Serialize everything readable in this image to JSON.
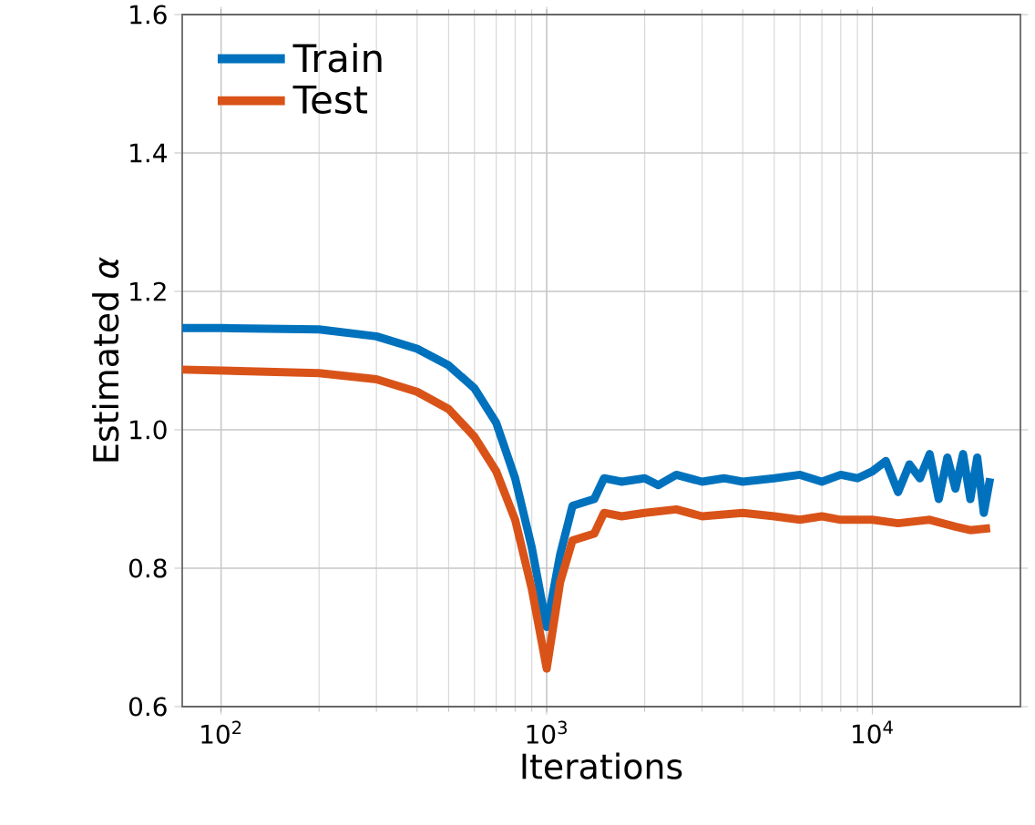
{
  "chart_data": {
    "type": "line",
    "xlabel": "Iterations",
    "ylabel": "Estimated *α*",
    "log": "x",
    "xlim": [
      76,
      28500
    ],
    "ylim": [
      0.6,
      1.6
    ],
    "xticks": [
      {
        "value": 100,
        "label": "10$^{2}$"
      },
      {
        "value": 1000,
        "label": "10$^{3}$"
      },
      {
        "value": 10000,
        "label": "10$^{4}$"
      }
    ],
    "yticks": [
      0.6,
      0.8,
      {
        "value": 1,
        "label": "1.0"
      },
      1.2,
      1.4,
      1.6
    ],
    "grid": true,
    "legend": "top left",
    "series": [
      {
        "name": "Train",
        "color": "#0072bd",
        "x": [
          76,
          100,
          200,
          300,
          400,
          500,
          600,
          700,
          800,
          900,
          1000,
          1100,
          1200,
          1400,
          1500,
          1700,
          2000,
          2200,
          2500,
          3000,
          3500,
          4000,
          5000,
          6000,
          7000,
          8000,
          9000,
          10000,
          11000,
          12000,
          13000,
          14000,
          15000,
          16000,
          17000,
          18000,
          19000,
          20000,
          21000,
          22000,
          23000
        ],
        "values": [
          1.147,
          1.147,
          1.145,
          1.135,
          1.117,
          1.093,
          1.06,
          1.01,
          0.93,
          0.83,
          0.715,
          0.82,
          0.89,
          0.9,
          0.93,
          0.925,
          0.93,
          0.92,
          0.935,
          0.925,
          0.93,
          0.925,
          0.93,
          0.935,
          0.925,
          0.935,
          0.93,
          0.94,
          0.955,
          0.91,
          0.95,
          0.93,
          0.965,
          0.9,
          0.96,
          0.915,
          0.965,
          0.9,
          0.96,
          0.88,
          0.93
        ]
      },
      {
        "name": "Test",
        "color": "#d95319",
        "x": [
          76,
          200,
          300,
          400,
          500,
          600,
          700,
          800,
          900,
          1000,
          1100,
          1200,
          1400,
          1500,
          1700,
          2000,
          2500,
          3000,
          4000,
          5000,
          6000,
          7000,
          8000,
          10000,
          12000,
          15000,
          18000,
          20000,
          23000
        ],
        "values": [
          1.087,
          1.082,
          1.073,
          1.055,
          1.03,
          0.99,
          0.94,
          0.87,
          0.77,
          0.655,
          0.78,
          0.84,
          0.85,
          0.88,
          0.875,
          0.88,
          0.885,
          0.875,
          0.88,
          0.875,
          0.87,
          0.875,
          0.87,
          0.87,
          0.865,
          0.87,
          0.86,
          0.855,
          0.858
        ]
      }
    ]
  }
}
